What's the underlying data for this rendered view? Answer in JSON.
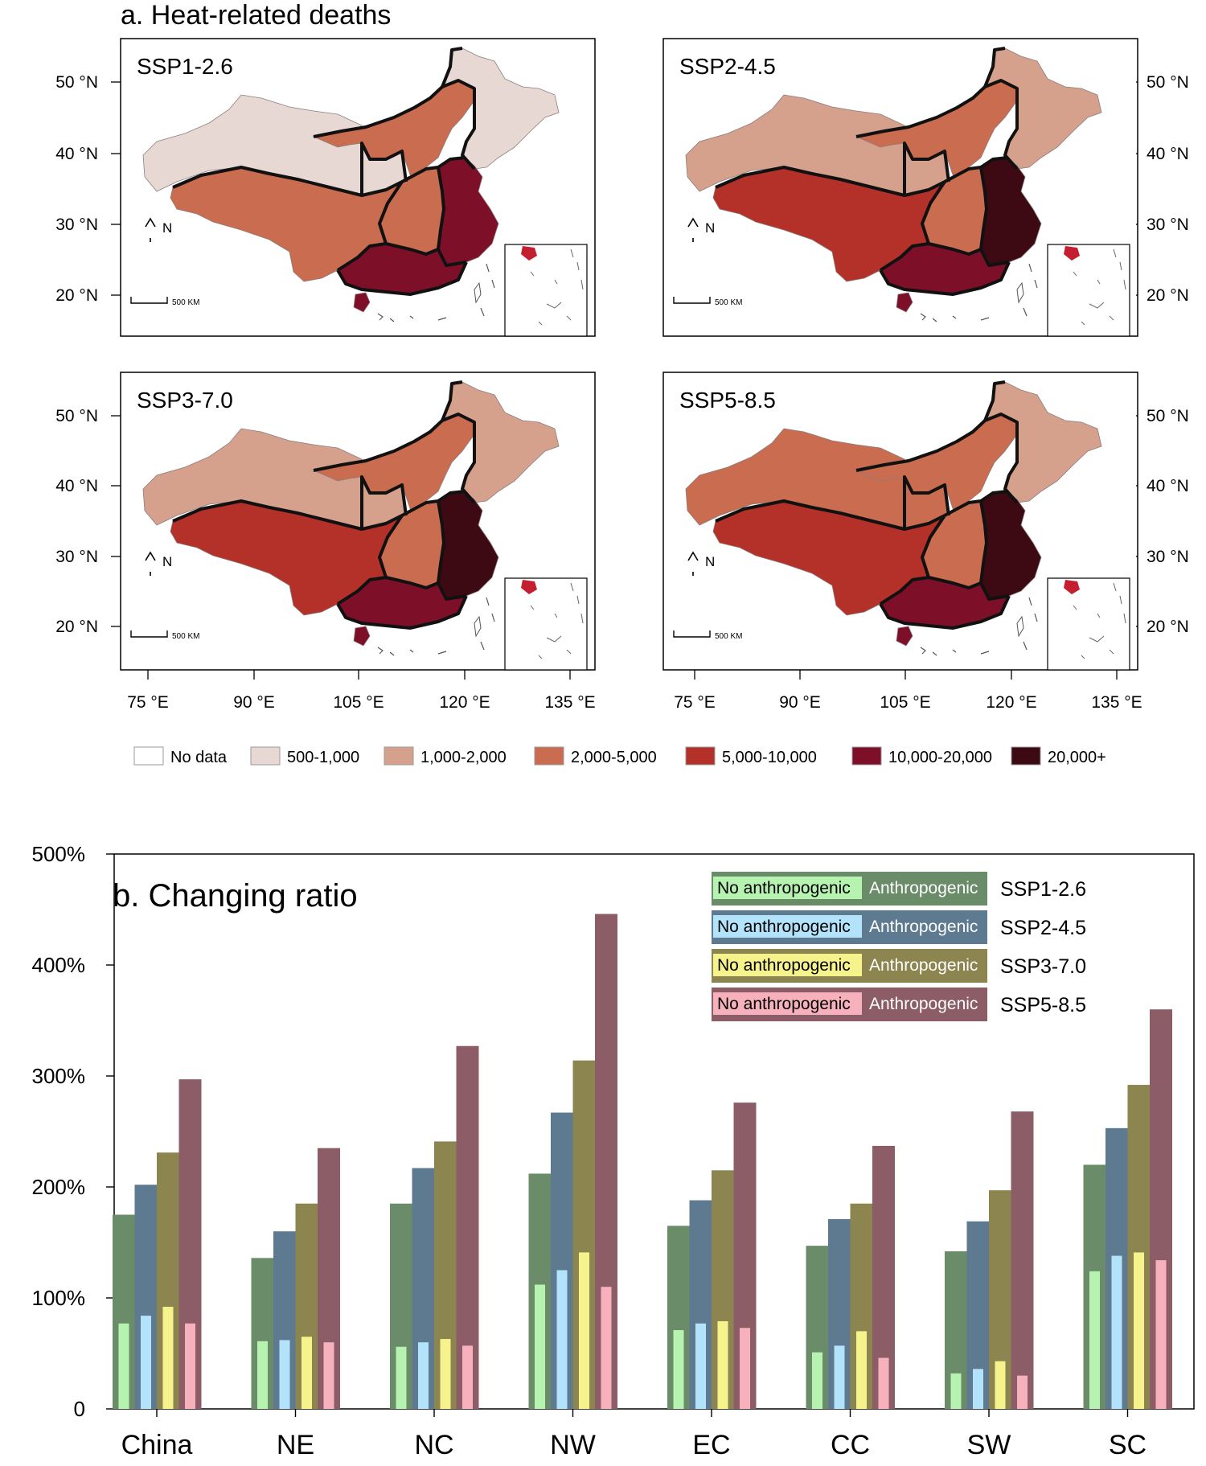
{
  "colors": {
    "no_data": "#ffffff",
    "c500_1000": "#e8d8d4",
    "c1000_2000": "#d5a08c",
    "c2000_5000": "#c96c4f",
    "c5000_10000": "#b33128",
    "c10000_20000": "#7d1028",
    "c20000plus": "#3d0a13",
    "inset_fill": "#c41f30",
    "ssp126_anthro": "#6b8c69",
    "ssp126_no": "#b6f2b0",
    "ssp245_anthro": "#5d7a91",
    "ssp245_no": "#b3e3fb",
    "ssp370_anthro": "#8c8550",
    "ssp370_no": "#f7f38c",
    "ssp585_anthro": "#8c5d66",
    "ssp585_no": "#f6b1bd"
  },
  "panel_a": {
    "title": "a. Heat-related deaths",
    "maps": [
      {
        "scenario": "SSP1-2.6",
        "regions": {
          "NE": "c500_1000",
          "NC": "c2000_5000",
          "NW": "c500_1000",
          "EC": "c10000_20000",
          "CC": "c2000_5000",
          "SW": "c2000_5000",
          "SC": "c10000_20000"
        }
      },
      {
        "scenario": "SSP2-4.5",
        "regions": {
          "NE": "c1000_2000",
          "NC": "c2000_5000",
          "NW": "c1000_2000",
          "EC": "c20000plus",
          "CC": "c2000_5000",
          "SW": "c5000_10000",
          "SC": "c10000_20000"
        }
      },
      {
        "scenario": "SSP3-7.0",
        "regions": {
          "NE": "c1000_2000",
          "NC": "c2000_5000",
          "NW": "c1000_2000",
          "EC": "c20000plus",
          "CC": "c2000_5000",
          "SW": "c5000_10000",
          "SC": "c10000_20000"
        }
      },
      {
        "scenario": "SSP5-8.5",
        "regions": {
          "NE": "c1000_2000",
          "NC": "c2000_5000",
          "NW": "c2000_5000",
          "EC": "c20000plus",
          "CC": "c2000_5000",
          "SW": "c5000_10000",
          "SC": "c10000_20000"
        }
      }
    ],
    "lat_labels": [
      "50 °N",
      "40 °N",
      "30 °N",
      "20 °N"
    ],
    "lon_labels": [
      "75 °E",
      "90 °E",
      "105 °E",
      "120 °E",
      "135 °E"
    ],
    "north_label": "N",
    "scale_label": "500 KM",
    "legend": [
      {
        "label": "No data",
        "color_key": "no_data"
      },
      {
        "label": "500-1,000",
        "color_key": "c500_1000"
      },
      {
        "label": "1,000-2,000",
        "color_key": "c1000_2000"
      },
      {
        "label": "2,000-5,000",
        "color_key": "c2000_5000"
      },
      {
        "label": "5,000-10,000",
        "color_key": "c5000_10000"
      },
      {
        "label": "10,000-20,000",
        "color_key": "c10000_20000"
      },
      {
        "label": "20,000+",
        "color_key": "c20000plus"
      }
    ]
  },
  "chart_data": {
    "type": "bar",
    "title": "b. Changing ratio",
    "xlabel": "",
    "ylabel": "",
    "ylim": [
      0,
      500
    ],
    "ytick_values": [
      0,
      100,
      200,
      300,
      400,
      500
    ],
    "ytick_labels": [
      "0",
      "100%",
      "200%",
      "300%",
      "400%",
      "500%"
    ],
    "categories": [
      "China",
      "NE",
      "NC",
      "NW",
      "EC",
      "CC",
      "SW",
      "SC"
    ],
    "legend_position": "top-right",
    "legend_no_label": "No anthropogenic",
    "legend_anthro_label": "Anthropogenic",
    "series": [
      {
        "name": "SSP1-2.6",
        "anthropogenic": [
          175,
          136,
          185,
          212,
          165,
          147,
          142,
          220
        ],
        "no_anthropogenic": [
          77,
          61,
          56,
          112,
          71,
          51,
          32,
          124
        ]
      },
      {
        "name": "SSP2-4.5",
        "anthropogenic": [
          202,
          160,
          217,
          267,
          188,
          171,
          169,
          253
        ],
        "no_anthropogenic": [
          84,
          62,
          60,
          125,
          77,
          57,
          36,
          138
        ]
      },
      {
        "name": "SSP3-7.0",
        "anthropogenic": [
          231,
          185,
          241,
          314,
          215,
          185,
          197,
          292
        ],
        "no_anthropogenic": [
          92,
          65,
          63,
          141,
          79,
          70,
          43,
          141
        ]
      },
      {
        "name": "SSP5-8.5",
        "anthropogenic": [
          297,
          235,
          327,
          446,
          276,
          237,
          268,
          360
        ],
        "no_anthropogenic": [
          77,
          60,
          57,
          110,
          73,
          46,
          30,
          134
        ]
      }
    ]
  }
}
